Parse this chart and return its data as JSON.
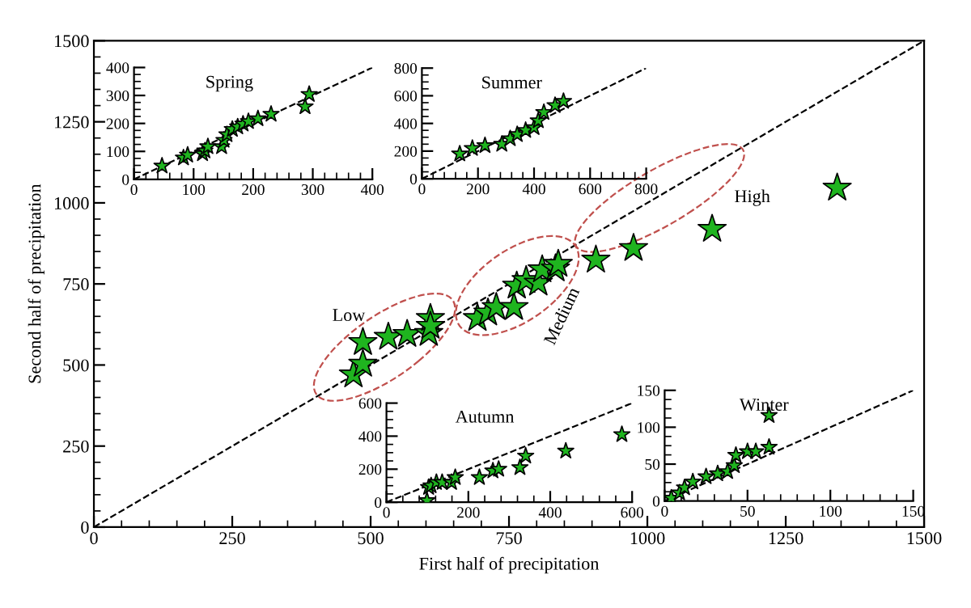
{
  "chart_data": [
    {
      "type": "scatter",
      "xlabel": "First half of precipitation",
      "ylabel": "Second half of precipitation",
      "xlim": [
        0,
        1500
      ],
      "ylim": [
        0,
        1500
      ],
      "xticks": [
        0,
        250,
        500,
        750,
        1000,
        1250,
        1500
      ],
      "yticks": [
        0,
        250,
        500,
        750,
        1000,
        1250,
        1500
      ],
      "marker": "star",
      "grid": false,
      "legend": false,
      "series": [
        {
          "type": "line",
          "color": "#000000",
          "line_style": "dashed",
          "x": [
            0,
            1500
          ],
          "values": [
            0,
            1500
          ],
          "marker": "none"
        },
        {
          "color": "#1fb41f",
          "x": [
            469,
            486,
            486,
            532,
            566,
            605,
            608,
            608,
            693,
            712,
            727,
            759,
            764,
            781,
            803,
            810,
            834,
            839,
            907,
            975,
            1117,
            1343
          ],
          "values": [
            470,
            503,
            570,
            586,
            595,
            598,
            644,
            620,
            644,
            661,
            678,
            678,
            744,
            761,
            753,
            794,
            797,
            811,
            824,
            860,
            919,
            1046
          ]
        }
      ],
      "annotations": [
        "Low",
        "Medium",
        "High"
      ]
    },
    {
      "type": "scatter",
      "title": "Spring",
      "xlim": [
        0,
        400
      ],
      "ylim": [
        0,
        400
      ],
      "xticks": [
        0,
        100,
        200,
        300,
        400
      ],
      "yticks": [
        0,
        100,
        200,
        300,
        400
      ],
      "marker": "star",
      "grid": false,
      "legend": false,
      "series": [
        {
          "type": "line",
          "color": "#000000",
          "line_style": "dashed",
          "x": [
            0,
            400
          ],
          "values": [
            0,
            400
          ],
          "marker": "none"
        },
        {
          "color": "#1fb41f",
          "x": [
            47,
            83,
            90,
            115,
            119,
            124,
            147,
            151,
            156,
            165,
            174,
            183,
            192,
            208,
            230,
            287,
            294
          ],
          "values": [
            48,
            77,
            87,
            92,
            102,
            117,
            117,
            140,
            160,
            179,
            188,
            198,
            207,
            217,
            233,
            260,
            304
          ]
        }
      ]
    },
    {
      "type": "scatter",
      "title": "Summer",
      "xlim": [
        0,
        800
      ],
      "ylim": [
        0,
        800
      ],
      "xticks": [
        0,
        200,
        400,
        600,
        800
      ],
      "yticks": [
        0,
        200,
        400,
        600,
        800
      ],
      "marker": "star",
      "grid": false,
      "legend": false,
      "series": [
        {
          "type": "line",
          "color": "#000000",
          "line_style": "dashed",
          "x": [
            0,
            800
          ],
          "values": [
            0,
            800
          ],
          "marker": "none"
        },
        {
          "color": "#1fb41f",
          "x": [
            135,
            180,
            225,
            285,
            315,
            340,
            370,
            400,
            415,
            435,
            475,
            505
          ],
          "values": [
            180,
            220,
            240,
            250,
            290,
            320,
            350,
            370,
            420,
            480,
            530,
            560
          ]
        }
      ]
    },
    {
      "type": "scatter",
      "title": "Autumn",
      "xlim": [
        0,
        600
      ],
      "ylim": [
        0,
        600
      ],
      "xticks": [
        0,
        200,
        400,
        600
      ],
      "yticks": [
        0,
        200,
        400,
        600
      ],
      "marker": "star",
      "grid": false,
      "legend": false,
      "series": [
        {
          "type": "line",
          "color": "#000000",
          "line_style": "dashed",
          "x": [
            0,
            600
          ],
          "values": [
            0,
            600
          ],
          "marker": "none"
        },
        {
          "color": "#1fb41f",
          "x": [
            99,
            103,
            109,
            122,
            136,
            159,
            168,
            227,
            260,
            274,
            326,
            340,
            438,
            575
          ],
          "values": [
            10,
            90,
            100,
            120,
            120,
            120,
            150,
            150,
            190,
            200,
            210,
            280,
            310,
            410
          ]
        }
      ]
    },
    {
      "type": "scatter",
      "title": "Winter",
      "xlim": [
        0,
        150
      ],
      "ylim": [
        0,
        150
      ],
      "xticks": [
        0,
        50,
        100,
        150
      ],
      "yticks": [
        0,
        50,
        100,
        150
      ],
      "marker": "star",
      "grid": false,
      "legend": false,
      "series": [
        {
          "type": "line",
          "color": "#000000",
          "line_style": "dashed",
          "x": [
            0,
            150
          ],
          "values": [
            0,
            150
          ],
          "marker": "none"
        },
        {
          "color": "#1fb41f",
          "x": [
            4,
            9,
            12,
            17,
            25,
            32,
            38,
            42,
            43,
            50,
            55,
            63,
            63
          ],
          "values": [
            4,
            11,
            18,
            26,
            33,
            37,
            40,
            48,
            62,
            67,
            67,
            73,
            116
          ]
        }
      ]
    }
  ]
}
